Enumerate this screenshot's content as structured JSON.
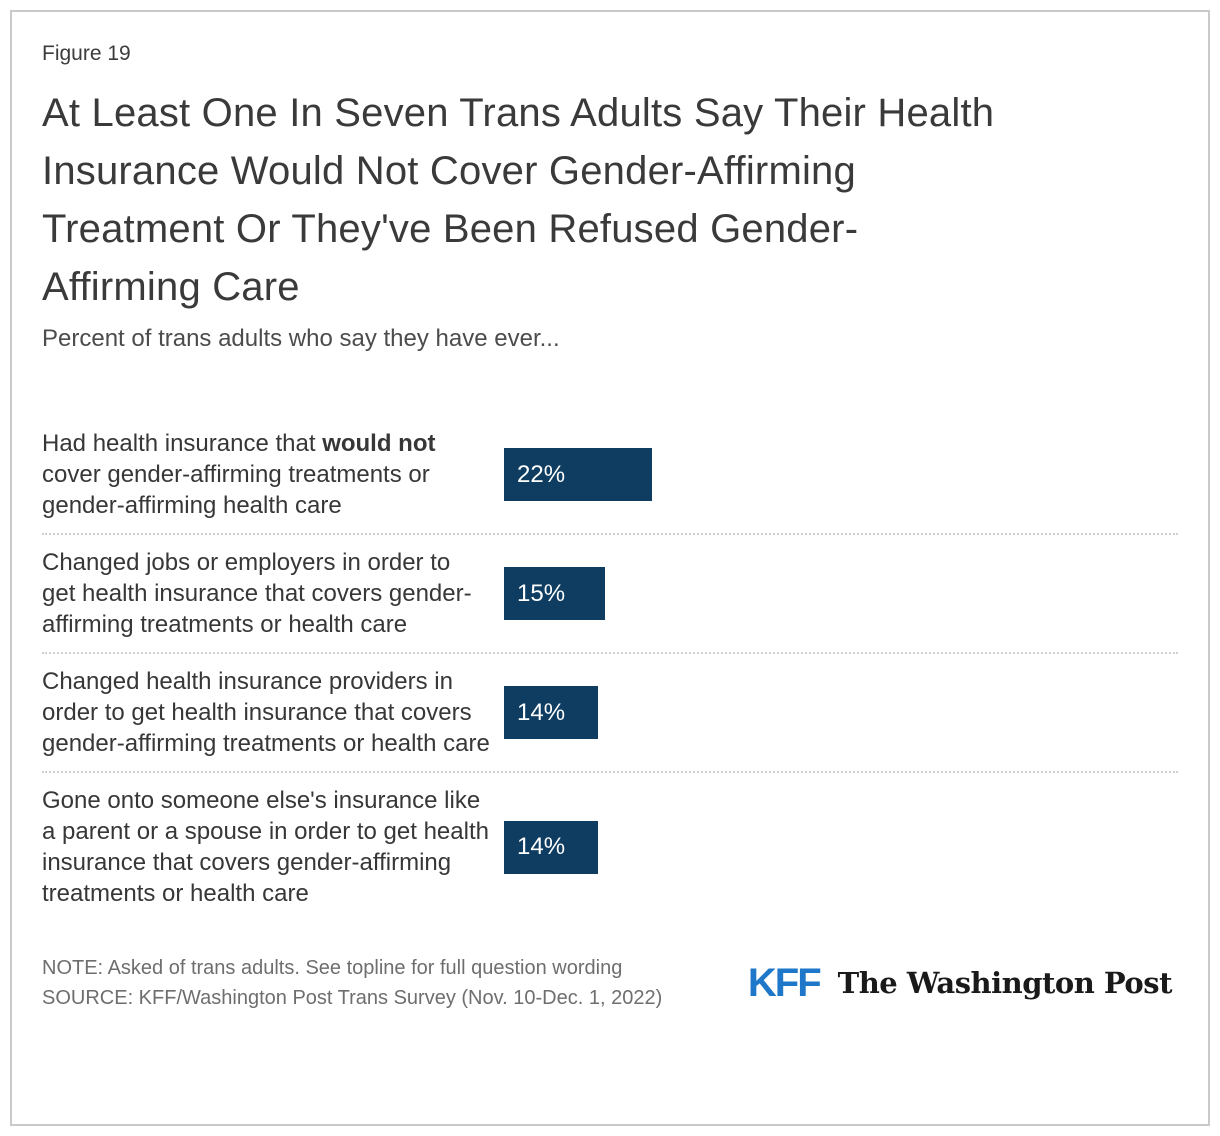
{
  "figure_label": "Figure 19",
  "title": "At Least One In Seven Trans Adults Say Their Health Insurance Would Not Cover Gender-Affirming Treatment Or They've Been Refused Gender-Affirming Care",
  "title_lines": [
    "At Least One In Seven Trans Adults Say Their Health",
    "Insurance Would Not Cover Gender-Affirming",
    "Treatment Or They've Been Refused Gender-",
    "Affirming Care"
  ],
  "subtitle": "Percent of trans adults who say they have ever...",
  "chart_data": {
    "type": "bar",
    "orientation": "horizontal",
    "title": "At Least One In Seven Trans Adults Say Their Health Insurance Would Not Cover Gender-Affirming Treatment Or They've Been Refused Gender-Affirming Care",
    "subtitle": "Percent of trans adults who say they have ever...",
    "categories": [
      "Had health insurance that would not cover gender-affirming treatments or gender-affirming health care",
      "Changed jobs or employers in order to get health insurance that covers gender-affirming treatments or health care",
      "Changed health insurance providers in order to get health insurance that covers gender-affirming treatments or health care",
      "Gone onto someone else's insurance like a parent or a spouse in order to get health insurance that covers gender-affirming treatments or health care"
    ],
    "values": [
      22,
      15,
      14,
      14
    ],
    "value_labels": [
      "22%",
      "15%",
      "14%",
      "14%"
    ],
    "xlim": [
      0,
      100
    ],
    "grid": false,
    "legend": false,
    "bar_color": "#0e3d61",
    "rows": [
      {
        "label_parts": [
          {
            "text": "Had health insurance that ",
            "bold": false
          },
          {
            "text": "would not",
            "bold": true
          },
          {
            "text": " cover gender-affirming treatments or gender-affirming health care",
            "bold": false
          }
        ],
        "value": 22,
        "value_label": "22%"
      },
      {
        "label_parts": [
          {
            "text": "Changed jobs or employers in order to get health insurance that covers gender-affirming treatments or health care",
            "bold": false
          }
        ],
        "value": 15,
        "value_label": "15%"
      },
      {
        "label_parts": [
          {
            "text": "Changed health insurance providers in order to get health insurance that covers gender-affirming treatments or health care",
            "bold": false
          }
        ],
        "value": 14,
        "value_label": "14%"
      },
      {
        "label_parts": [
          {
            "text": "Gone onto someone else's insurance like a parent or a spouse in order to get health insurance that covers gender-affirming treatments or health care",
            "bold": false
          }
        ],
        "value": 14,
        "value_label": "14%"
      }
    ]
  },
  "footer": {
    "note": "NOTE: Asked of trans adults. See topline for full question wording",
    "source": "SOURCE: KFF/Washington Post Trans Survey (Nov. 10-Dec. 1, 2022)",
    "kff_logo": "KFF",
    "wapo_logo": "The Washington Post"
  },
  "colors": {
    "bar": "#0e3d61",
    "kff_blue": "#1e77c8",
    "title_text": "#3a3a3a",
    "muted_text": "#6e6e6e",
    "frame_border": "#c9c9c9",
    "row_separator": "#cfcfcf"
  }
}
